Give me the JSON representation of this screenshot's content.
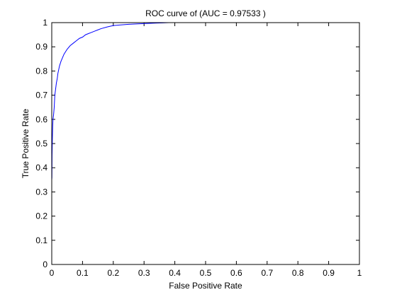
{
  "chart_data": {
    "type": "line",
    "title": "ROC curve of (AUC = 0.97533 )",
    "xlabel": "False Positive Rate",
    "ylabel": "True Positive Rate",
    "xlim": [
      0,
      1
    ],
    "ylim": [
      0,
      1
    ],
    "xticks": [
      0,
      0.1,
      0.2,
      0.3,
      0.4,
      0.5,
      0.6,
      0.7,
      0.8,
      0.9,
      1
    ],
    "yticks": [
      0,
      0.1,
      0.2,
      0.3,
      0.4,
      0.5,
      0.6,
      0.7,
      0.8,
      0.9,
      1
    ],
    "xtick_labels": [
      "0",
      "0.1",
      "0.2",
      "0.3",
      "0.4",
      "0.5",
      "0.6",
      "0.7",
      "0.8",
      "0.9",
      "1"
    ],
    "ytick_labels": [
      "0",
      "0.1",
      "0.2",
      "0.3",
      "0.4",
      "0.5",
      "0.6",
      "0.7",
      "0.8",
      "0.9",
      "1"
    ],
    "grid": false,
    "legend": "none",
    "line_color": "#0000ff",
    "axis_color": "#000000",
    "series": [
      {
        "x": [
          0,
          0.0005,
          0.001,
          0.002,
          0.003,
          0.004,
          0.006,
          0.008,
          0.01,
          0.012,
          0.015,
          0.018,
          0.02,
          0.025,
          0.03,
          0.035,
          0.04,
          0.05,
          0.06,
          0.07,
          0.08,
          0.09,
          0.1,
          0.11,
          0.12,
          0.13,
          0.14,
          0.15,
          0.16,
          0.18,
          0.2,
          0.22,
          0.25,
          0.28,
          0.3,
          0.32,
          0.34,
          0.36,
          0.38
        ],
        "y": [
          0.35,
          0.36,
          0.45,
          0.52,
          0.57,
          0.6,
          0.62,
          0.65,
          0.7,
          0.72,
          0.75,
          0.77,
          0.79,
          0.82,
          0.84,
          0.855,
          0.87,
          0.89,
          0.905,
          0.915,
          0.925,
          0.935,
          0.94,
          0.95,
          0.955,
          0.96,
          0.965,
          0.97,
          0.975,
          0.982,
          0.988,
          0.99,
          0.993,
          0.995,
          0.996,
          0.997,
          0.998,
          0.999,
          1
        ]
      }
    ]
  }
}
